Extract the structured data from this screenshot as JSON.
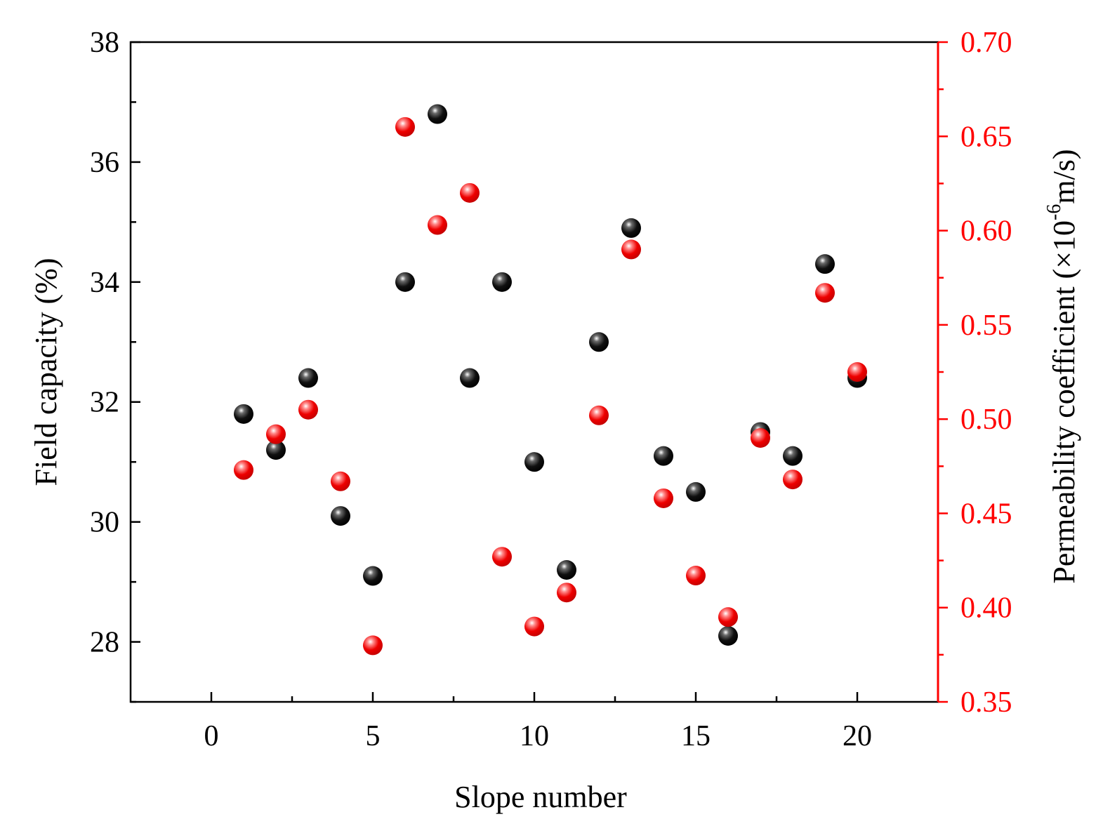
{
  "chart_data": {
    "type": "scatter",
    "xlabel": "Slope number",
    "ylabel_left": "Field capacity (%)",
    "ylabel_right_prefix": "Permeability coefficient (×10",
    "ylabel_right_exp": "-6",
    "ylabel_right_suffix": "m/s)",
    "xlim": [
      -2.5,
      22.5
    ],
    "ylim_left": [
      27,
      38
    ],
    "ylim_right": [
      0.35,
      0.7
    ],
    "x_ticks": [
      "0",
      "5",
      "10",
      "15",
      "20"
    ],
    "y_left_ticks": [
      "28",
      "30",
      "32",
      "34",
      "36",
      "38"
    ],
    "y_right_ticks": [
      "0.35",
      "0.40",
      "0.45",
      "0.50",
      "0.55",
      "0.60",
      "0.65",
      "0.70"
    ],
    "grid": false,
    "legend": "none",
    "series": [
      {
        "axis": "left",
        "color": "#000000",
        "x": [
          1,
          2,
          3,
          4,
          5,
          6,
          7,
          8,
          9,
          10,
          11,
          12,
          13,
          14,
          15,
          16,
          17,
          18,
          19,
          20
        ],
        "y": [
          31.8,
          31.2,
          32.4,
          30.1,
          29.1,
          34.0,
          36.8,
          32.4,
          34.0,
          31.0,
          29.2,
          33.0,
          34.9,
          31.1,
          30.5,
          28.1,
          31.5,
          31.1,
          34.3,
          32.4
        ]
      },
      {
        "axis": "right",
        "color": "#ff0000",
        "x": [
          1,
          2,
          3,
          4,
          5,
          6,
          7,
          8,
          9,
          10,
          11,
          12,
          13,
          14,
          15,
          16,
          17,
          18,
          19,
          20
        ],
        "y": [
          0.473,
          0.492,
          0.505,
          0.467,
          0.38,
          0.655,
          0.603,
          0.62,
          0.427,
          0.39,
          0.408,
          0.502,
          0.59,
          0.458,
          0.417,
          0.395,
          0.49,
          0.468,
          0.567,
          0.525
        ]
      }
    ]
  }
}
